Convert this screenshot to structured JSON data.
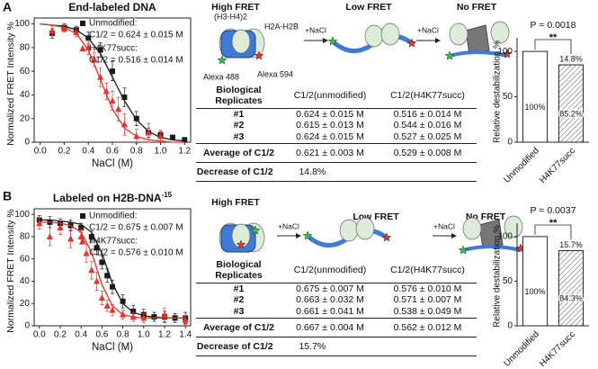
{
  "panel_labels": [
    "A",
    "B"
  ],
  "chart_data": [
    {
      "type": "scatter",
      "title": "End-labeled DNA",
      "xlabel": "NaCl (M)",
      "ylabel": "Normalized FRET Intensity %",
      "xlim": [
        -0.05,
        1.25
      ],
      "ylim": [
        0,
        105
      ],
      "xticks": [
        {
          "value": 0,
          "label": "0.0"
        },
        0.2,
        0.4,
        0.6,
        0.8,
        {
          "value": 1,
          "label": "1.0"
        },
        1.2
      ],
      "yticks": [
        0,
        20,
        40,
        60,
        80,
        100
      ],
      "series": [
        {
          "name": "Unmodified:",
          "note": "C1/2 = 0.624 ± 0.015 M",
          "color": "#1a1a1a",
          "marker": "square",
          "x": [
            0.1,
            0.2,
            0.3,
            0.4,
            0.5,
            0.6,
            0.7,
            0.8,
            0.9,
            1.0,
            1.1,
            1.2
          ],
          "values": [
            92,
            97,
            95,
            88,
            78,
            60,
            38,
            20,
            8,
            6,
            4,
            2
          ],
          "errors": [
            4,
            3,
            3,
            5,
            6,
            8,
            8,
            6,
            4,
            3,
            2,
            2
          ],
          "fit": {
            "x": [
              0,
              0.1,
              0.2,
              0.3,
              0.4,
              0.5,
              0.6,
              0.7,
              0.8,
              0.9,
              1.0,
              1.1,
              1.2
            ],
            "values": [
              100,
              99,
              98,
              95,
              88,
              75,
              55,
              35,
              19,
              9,
              4,
              2,
              1
            ]
          }
        },
        {
          "name": "H4K77succ:",
          "note": "C1/2 = 0.516 ± 0.014 M",
          "color": "#e8322c",
          "marker": "triangle",
          "x": [
            0.1,
            0.2,
            0.3,
            0.4,
            0.45,
            0.5,
            0.55,
            0.6,
            0.65,
            0.7,
            0.8,
            0.9,
            1.0
          ],
          "values": [
            94,
            96,
            93,
            80,
            70,
            55,
            43,
            35,
            28,
            15,
            5,
            8,
            5
          ],
          "errors": [
            4,
            3,
            4,
            6,
            6,
            8,
            7,
            8,
            10,
            9,
            6,
            8,
            5
          ],
          "fit": {
            "x": [
              0,
              0.1,
              0.2,
              0.3,
              0.4,
              0.5,
              0.6,
              0.7,
              0.8,
              0.9,
              1.0,
              1.1,
              1.2
            ],
            "values": [
              100,
              99,
              97,
              92,
              78,
              53,
              28,
              12,
              5,
              2,
              1,
              0,
              0
            ]
          }
        }
      ]
    },
    {
      "type": "bar",
      "ylabel": "Relative destabilization %",
      "categories": [
        "Unmodified",
        "H4K77succ"
      ],
      "values": [
        100,
        85.2
      ],
      "value_labels": [
        "100%",
        "85.2%"
      ],
      "hatched": [
        false,
        true
      ],
      "color": "#ffffff",
      "decrease_label": "14.8%",
      "p_value": "P = 0.0018",
      "significance": "**",
      "ylim": [
        0,
        115
      ],
      "yticks": [
        0,
        50,
        100
      ]
    },
    {
      "type": "scatter",
      "title": "Labeled on H2B-DNA",
      "title_superscript": "-15",
      "xlabel": "NaCl (M)",
      "ylabel": "Normalized FRET Intensity %",
      "xlim": [
        -0.05,
        1.45
      ],
      "ylim": [
        0,
        105
      ],
      "xticks": [
        {
          "value": 0,
          "label": "0.0"
        },
        0.2,
        0.4,
        0.6,
        0.8,
        {
          "value": 1,
          "label": "1.0"
        },
        1.2,
        1.4
      ],
      "yticks": [
        0,
        20,
        40,
        60,
        80,
        100
      ],
      "series": [
        {
          "name": "Unmodified:",
          "note": "C1/2 = 0.675 ± 0.007 M",
          "color": "#1a1a1a",
          "marker": "square",
          "x": [
            0.0,
            0.1,
            0.2,
            0.3,
            0.4,
            0.5,
            0.55,
            0.6,
            0.65,
            0.7,
            0.8,
            0.9,
            1.0,
            1.1,
            1.2,
            1.3,
            1.4
          ],
          "values": [
            95,
            93,
            92,
            90,
            88,
            80,
            70,
            57,
            45,
            35,
            22,
            13,
            10,
            8,
            8,
            7,
            7
          ],
          "errors": [
            4,
            5,
            4,
            5,
            4,
            5,
            6,
            6,
            6,
            6,
            6,
            5,
            5,
            4,
            5,
            4,
            5
          ],
          "fit": {
            "x": [
              0,
              0.1,
              0.2,
              0.3,
              0.4,
              0.5,
              0.6,
              0.7,
              0.8,
              0.9,
              1.0,
              1.1,
              1.2,
              1.3,
              1.4
            ],
            "values": [
              95,
              95,
              94,
              93,
              91,
              84,
              65,
              38,
              20,
              12,
              9,
              8,
              7,
              7,
              7
            ]
          }
        },
        {
          "name": "H4K77succ:",
          "note": "C1/2 = 0.576 ± 0.010 M",
          "color": "#e8322c",
          "marker": "triangle",
          "x": [
            0.0,
            0.1,
            0.2,
            0.3,
            0.4,
            0.45,
            0.5,
            0.55,
            0.6,
            0.65,
            0.7,
            0.8,
            0.9,
            1.0,
            1.2,
            1.4
          ],
          "values": [
            92,
            80,
            88,
            78,
            80,
            65,
            50,
            40,
            25,
            18,
            14,
            10,
            8,
            7,
            10,
            5
          ],
          "errors": [
            5,
            8,
            6,
            8,
            7,
            8,
            8,
            8,
            6,
            5,
            5,
            4,
            4,
            4,
            6,
            4
          ],
          "fit": {
            "x": [
              0,
              0.1,
              0.2,
              0.3,
              0.4,
              0.5,
              0.6,
              0.7,
              0.8,
              0.9,
              1.0,
              1.1,
              1.2,
              1.3,
              1.4
            ],
            "values": [
              93,
              93,
              92,
              90,
              84,
              66,
              37,
              18,
              10,
              8,
              7,
              7,
              7,
              7,
              7
            ]
          }
        }
      ]
    },
    {
      "type": "bar",
      "ylabel": "Relative destabilization %",
      "categories": [
        "Unmodified",
        "H4K77succ"
      ],
      "values": [
        100,
        84.3
      ],
      "value_labels": [
        "100%",
        "84.3%"
      ],
      "hatched": [
        false,
        true
      ],
      "color": "#ffffff",
      "decrease_label": "15.7%",
      "p_value": "P = 0.0037",
      "significance": "**",
      "ylim": [
        0,
        115
      ],
      "yticks": [
        0,
        50,
        100
      ]
    }
  ],
  "schematics": [
    {
      "high": "High FRET",
      "h3h4": "(H3-H4)2",
      "h2ah2b": "H2A-H2B",
      "alexa488": "Alexa 488",
      "alexa594": "Alexa 594",
      "step1": "+NaCl",
      "low": "Low FRET",
      "step2": "+NaCl",
      "none": "No FRET"
    },
    {
      "high": "High FRET",
      "step1": "+NaCl",
      "low": "Low FRET",
      "step2": "+NaCl",
      "none": "No FRET"
    }
  ],
  "tables": [
    {
      "header": [
        "Biological Replicates",
        "C1/2(unmodified)",
        "C1/2(H4K77succ)"
      ],
      "rows": [
        [
          "#1",
          "0.624 ± 0.015 M",
          "0.516 ± 0.014 M"
        ],
        [
          "#2",
          "0.615 ± 0.013 M",
          "0.544 ± 0.016 M"
        ],
        [
          "#3",
          "0.624 ± 0.015 M",
          "0.527 ± 0.025 M"
        ]
      ],
      "average": [
        "Average of C1/2",
        "0.621 ± 0.003 M",
        "0.529 ± 0.008 M"
      ],
      "decrease": [
        "Decrease of C1/2",
        "14.8%"
      ]
    },
    {
      "header": [
        "Biological Replicates",
        "C1/2(unmodified)",
        "C1/2(H4K77succ)"
      ],
      "rows": [
        [
          "#1",
          "0.675 ± 0.007 M",
          "0.576 ± 0.010 M"
        ],
        [
          "#2",
          "0.663 ± 0.032 M",
          "0.571 ± 0.007 M"
        ],
        [
          "#3",
          "0.661 ± 0.041 M",
          "0.538 ± 0.049 M"
        ]
      ],
      "average": [
        "Average of C1/2",
        "0.667 ± 0.004 M",
        "0.562 ± 0.012 M"
      ],
      "decrease": [
        "Decrease of C1/2",
        "15.7%"
      ]
    }
  ]
}
